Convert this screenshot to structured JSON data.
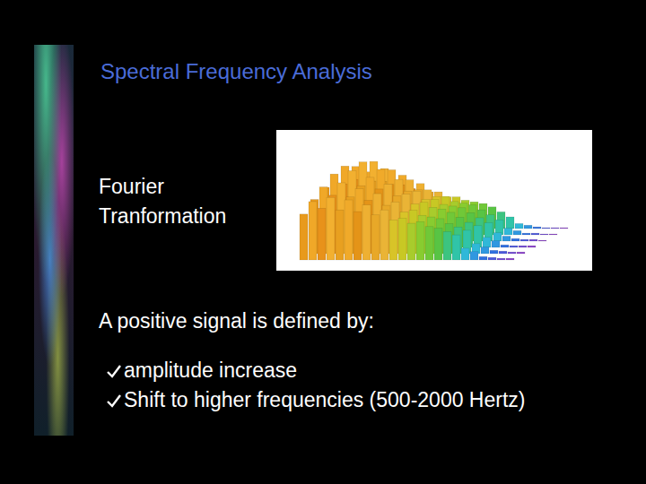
{
  "slide": {
    "title": "Spectral Frequency Analysis",
    "left_label": [
      "Fourier",
      "Tranformation"
    ],
    "definition": "A positive signal is defined by:",
    "bullets": [
      "amplitude increase",
      "Shift to higher frequencies (500-2000 Hertz)"
    ]
  },
  "chart_data": {
    "type": "waterfall",
    "categories": [
      null,
      null,
      null,
      null,
      null,
      null,
      null,
      null,
      null,
      null,
      null,
      null,
      null,
      null,
      null,
      null,
      null,
      null,
      null,
      null,
      null,
      null,
      null,
      null
    ],
    "colors": [
      "#e89a1c",
      "#f0a828",
      "#e8921a",
      "#f2b030",
      "#e8a020",
      "#f0aa2a",
      "#e49418",
      "#eeb032",
      "#e8a828",
      "#eab436",
      "#d8c428",
      "#c8c824",
      "#a8cc2c",
      "#88cc30",
      "#70c838",
      "#58c444",
      "#3cc480",
      "#30c4a8",
      "#30b8d8",
      "#3098e0",
      "#3070e0",
      "#4c58dc",
      "#7048d4",
      "#8c40cc"
    ],
    "series": [
      {
        "values": [
          55,
          70,
          62,
          75,
          60,
          72,
          58,
          66,
          54,
          60,
          48,
          50,
          44,
          46,
          40,
          38,
          34,
          30,
          14,
          10,
          4,
          3,
          2,
          2
        ]
      },
      {
        "values": [
          65,
          80,
          70,
          85,
          68,
          78,
          64,
          72,
          58,
          62,
          50,
          52,
          46,
          44,
          42,
          36,
          32,
          28,
          12,
          8,
          4,
          3,
          2,
          2
        ]
      },
      {
        "values": [
          72,
          88,
          76,
          92,
          74,
          84,
          70,
          76,
          62,
          64,
          52,
          54,
          48,
          46,
          42,
          36,
          30,
          26,
          12,
          8,
          3,
          2,
          2,
          2
        ]
      },
      {
        "values": [
          68,
          90,
          74,
          95,
          72,
          86,
          68,
          74,
          60,
          60,
          50,
          50,
          44,
          42,
          40,
          34,
          28,
          22,
          10,
          6,
          3,
          2,
          2,
          1
        ]
      },
      {
        "values": [
          58,
          82,
          66,
          88,
          64,
          78,
          60,
          66,
          54,
          54,
          46,
          46,
          40,
          38,
          36,
          30,
          24,
          18,
          8,
          5,
          2,
          2,
          1,
          1
        ]
      },
      {
        "values": [
          45,
          68,
          52,
          72,
          50,
          64,
          48,
          54,
          44,
          44,
          38,
          38,
          34,
          32,
          30,
          26,
          20,
          14,
          6,
          4,
          2,
          1,
          1,
          1
        ]
      }
    ],
    "ylim": [
      0,
      100
    ],
    "tick_labels": false
  }
}
